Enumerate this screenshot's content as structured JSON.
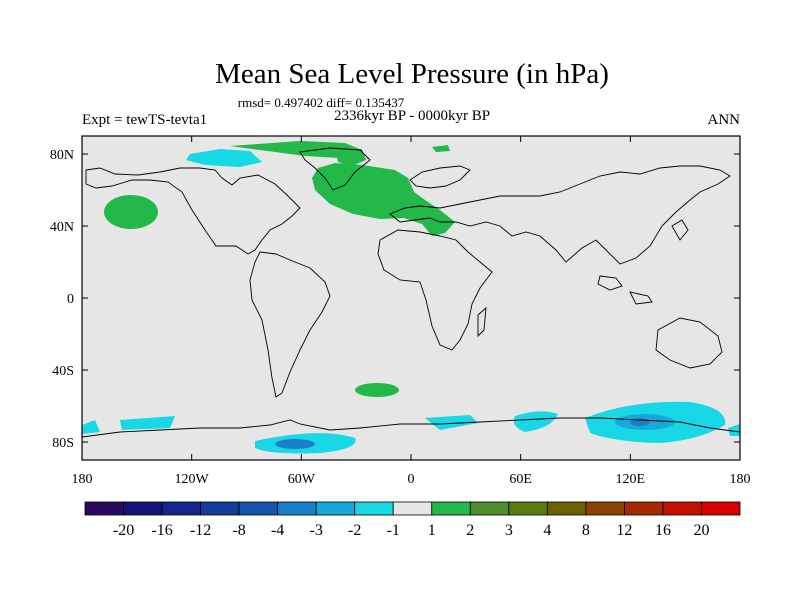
{
  "chart_data": {
    "type": "heatmap",
    "title": "Mean Sea Level Pressure (in hPa)",
    "stats_line": "rmsd= 0.497402 diff= 0.135437",
    "subtitle": "2336kyr BP - 0000kyr BP",
    "left_label": "Expt = tewTS-tevta1",
    "right_label": "ANN",
    "x_ticks": [
      {
        "value": -180,
        "label": "180"
      },
      {
        "value": -120,
        "label": "120W"
      },
      {
        "value": -60,
        "label": "60W"
      },
      {
        "value": 0,
        "label": "0"
      },
      {
        "value": 60,
        "label": "60E"
      },
      {
        "value": 120,
        "label": "120E"
      },
      {
        "value": 180,
        "label": "180"
      }
    ],
    "y_ticks": [
      {
        "value": 80,
        "label": "80N"
      },
      {
        "value": 40,
        "label": "40N"
      },
      {
        "value": 0,
        "label": "0"
      },
      {
        "value": -40,
        "label": "40S"
      },
      {
        "value": -80,
        "label": "80S"
      }
    ],
    "xlim": [
      -180,
      180
    ],
    "ylim": [
      -90,
      90
    ],
    "colorbar": {
      "labels": [
        "-20",
        "-16",
        "-12",
        "-8",
        "-4",
        "-3",
        "-2",
        "-1",
        "1",
        "2",
        "3",
        "4",
        "8",
        "12",
        "16",
        "20"
      ],
      "colors": [
        "#2b0a5e",
        "#14137a",
        "#14268a",
        "#123d98",
        "#1554ab",
        "#1a7fc9",
        "#16a9d9",
        "#19d8e6",
        "#e6e6e6",
        "#23b84a",
        "#4a8f2a",
        "#5a7a12",
        "#6d6000",
        "#8c4200",
        "#a82800",
        "#c41000",
        "#d80000"
      ]
    },
    "regions": [
      {
        "name": "arctic-greenland-positive",
        "level": "1 to 2",
        "color": "#23b84a"
      },
      {
        "name": "north-atlantic-europe-positive",
        "level": "1 to 2",
        "color": "#23b84a"
      },
      {
        "name": "north-pacific-positive",
        "level": "1 to 2",
        "color": "#23b84a"
      },
      {
        "name": "south-atlantic-positive",
        "level": "1 to 2",
        "color": "#23b84a"
      },
      {
        "name": "arctic-canada-negative",
        "level": "-2 to -1",
        "color": "#19d8e6"
      },
      {
        "name": "antarctic-negative",
        "level": "-4 to -1",
        "color": "#19d8e6"
      }
    ]
  }
}
